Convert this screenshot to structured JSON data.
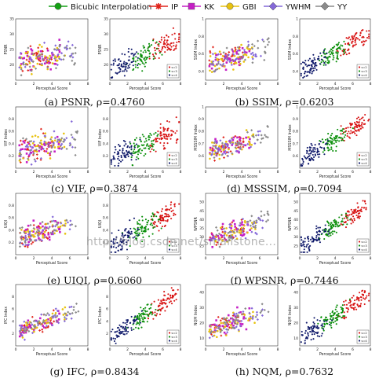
{
  "legend": {
    "items": [
      {
        "label": "Bicubic Interpolation",
        "color": "#13a113",
        "marker": "circle-line"
      },
      {
        "label": "IP",
        "color": "#e0241b",
        "marker": "asterisk"
      },
      {
        "label": "KK",
        "color": "#c51fc5",
        "marker": "square"
      },
      {
        "label": "GBI",
        "color": "#e8c20f",
        "marker": "circle"
      },
      {
        "label": "YWHM",
        "color": "#8468d8",
        "marker": "diamond"
      },
      {
        "label": "YY",
        "color": "#8a8a8a",
        "marker": "diamond"
      }
    ]
  },
  "scale_colors": {
    "s2": "#d81414",
    "s3": "#0a8f0a",
    "s4": "#101a6b"
  },
  "watermark": "http://blog.csdn.net/smallstone...",
  "chart_data": [
    {
      "type": "scatter",
      "id": "psnr",
      "caption": "(a) PSNR, ρ=0.4760",
      "metric": "PSNR",
      "ylabel_left": "PSNR",
      "ylabel_right": "PSNR",
      "xlabel": "Perceptual Score",
      "xlim": [
        0,
        8
      ],
      "ylim": [
        15,
        35
      ],
      "yticks": [
        20,
        25,
        30,
        35
      ],
      "xticks": [
        0,
        2,
        4,
        6,
        8
      ],
      "rho": 0.476,
      "scales": [
        "s=2",
        "s=3",
        "s=4"
      ],
      "n_points_per_method": 36
    },
    {
      "type": "scatter",
      "id": "ssim",
      "caption": "(b) SSIM, ρ=0.6203",
      "metric": "SSIM",
      "ylabel_left": "SSIM Index",
      "ylabel_right": "SSIM Index",
      "xlabel": "Perceptual Score",
      "xlim": [
        0,
        8
      ],
      "ylim": [
        0.3,
        1.0
      ],
      "yticks": [
        0.4,
        0.6,
        0.8,
        1.0
      ],
      "xticks": [
        0,
        2,
        4,
        6,
        8
      ],
      "rho": 0.6203,
      "scales": [
        "s=2",
        "s=3",
        "s=4"
      ],
      "n_points_per_method": 36
    },
    {
      "type": "scatter",
      "id": "vif",
      "caption": "(c) VIF, ρ=0.3874",
      "metric": "VIF",
      "ylabel_left": "VIF Index",
      "ylabel_right": "VIF Index",
      "xlabel": "Perceptual Score",
      "xlim": [
        0,
        8
      ],
      "ylim": [
        0.0,
        1.0
      ],
      "yticks": [
        0.2,
        0.4,
        0.6,
        0.8
      ],
      "xticks": [
        0,
        2,
        4,
        6,
        8
      ],
      "rho": 0.3874,
      "scales": [
        "s=2",
        "s=3",
        "s=4"
      ],
      "n_points_per_method": 36
    },
    {
      "type": "scatter",
      "id": "msssim",
      "caption": "(d) MSSSIM, ρ=0.7094",
      "metric": "MSSSIM",
      "ylabel_left": "MSSSIM Index",
      "ylabel_right": "MSSSIM Index",
      "xlabel": "Perceptual Score",
      "xlim": [
        0,
        8
      ],
      "ylim": [
        0.5,
        1.0
      ],
      "yticks": [
        0.6,
        0.7,
        0.8,
        0.9,
        1.0
      ],
      "xticks": [
        0,
        2,
        4,
        6,
        8
      ],
      "rho": 0.7094,
      "scales": [
        "s=2",
        "s=3",
        "s=4"
      ],
      "n_points_per_method": 36
    },
    {
      "type": "scatter",
      "id": "uiqi",
      "caption": "(e) UIQI, ρ=0.6060",
      "metric": "UIQI",
      "ylabel_left": "UIQI",
      "ylabel_right": "UIQI",
      "xlabel": "Perceptual Score",
      "xlim": [
        0,
        8
      ],
      "ylim": [
        0.0,
        1.0
      ],
      "yticks": [
        0.2,
        0.4,
        0.6,
        0.8
      ],
      "xticks": [
        0,
        2,
        4,
        6,
        8
      ],
      "rho": 0.606,
      "scales": [
        "s=2",
        "s=3",
        "s=4"
      ],
      "n_points_per_method": 36
    },
    {
      "type": "scatter",
      "id": "wpsnr",
      "caption": "(f) WPSNR, ρ=0.7446",
      "metric": "WPSNR",
      "ylabel_left": "WPSNR",
      "ylabel_right": "WPSNR",
      "xlabel": "Perceptual Score",
      "xlim": [
        0,
        8
      ],
      "ylim": [
        20,
        55
      ],
      "yticks": [
        25,
        30,
        35,
        40,
        45,
        50
      ],
      "xticks": [
        0,
        2,
        4,
        6,
        8
      ],
      "rho": 0.7446,
      "scales": [
        "s=2",
        "s=3",
        "s=4"
      ],
      "n_points_per_method": 36
    },
    {
      "type": "scatter",
      "id": "ifc",
      "caption": "(g) IFC, ρ=0.8434",
      "metric": "IFC",
      "ylabel_left": "IFC Index",
      "ylabel_right": "IFC Index",
      "xlabel": "Perceptual Score",
      "xlim": [
        0,
        8
      ],
      "ylim": [
        0,
        10
      ],
      "yticks": [
        2,
        4,
        6,
        8
      ],
      "xticks": [
        0,
        2,
        4,
        6,
        8
      ],
      "rho": 0.8434,
      "scales": [
        "s=2",
        "s=3",
        "s=4"
      ],
      "n_points_per_method": 36
    },
    {
      "type": "scatter",
      "id": "nqm",
      "caption": "(h) NQM, ρ=0.7632",
      "metric": "NQM",
      "ylabel_left": "NQM Index",
      "ylabel_right": "NQM Index",
      "xlabel": "Perceptual Score",
      "xlim": [
        0,
        8
      ],
      "ylim": [
        5,
        45
      ],
      "yticks": [
        10,
        20,
        30,
        40
      ],
      "xticks": [
        0,
        2,
        4,
        6,
        8
      ],
      "rho": 0.7632,
      "scales": [
        "s=2",
        "s=3",
        "s=4"
      ],
      "n_points_per_method": 36
    }
  ]
}
